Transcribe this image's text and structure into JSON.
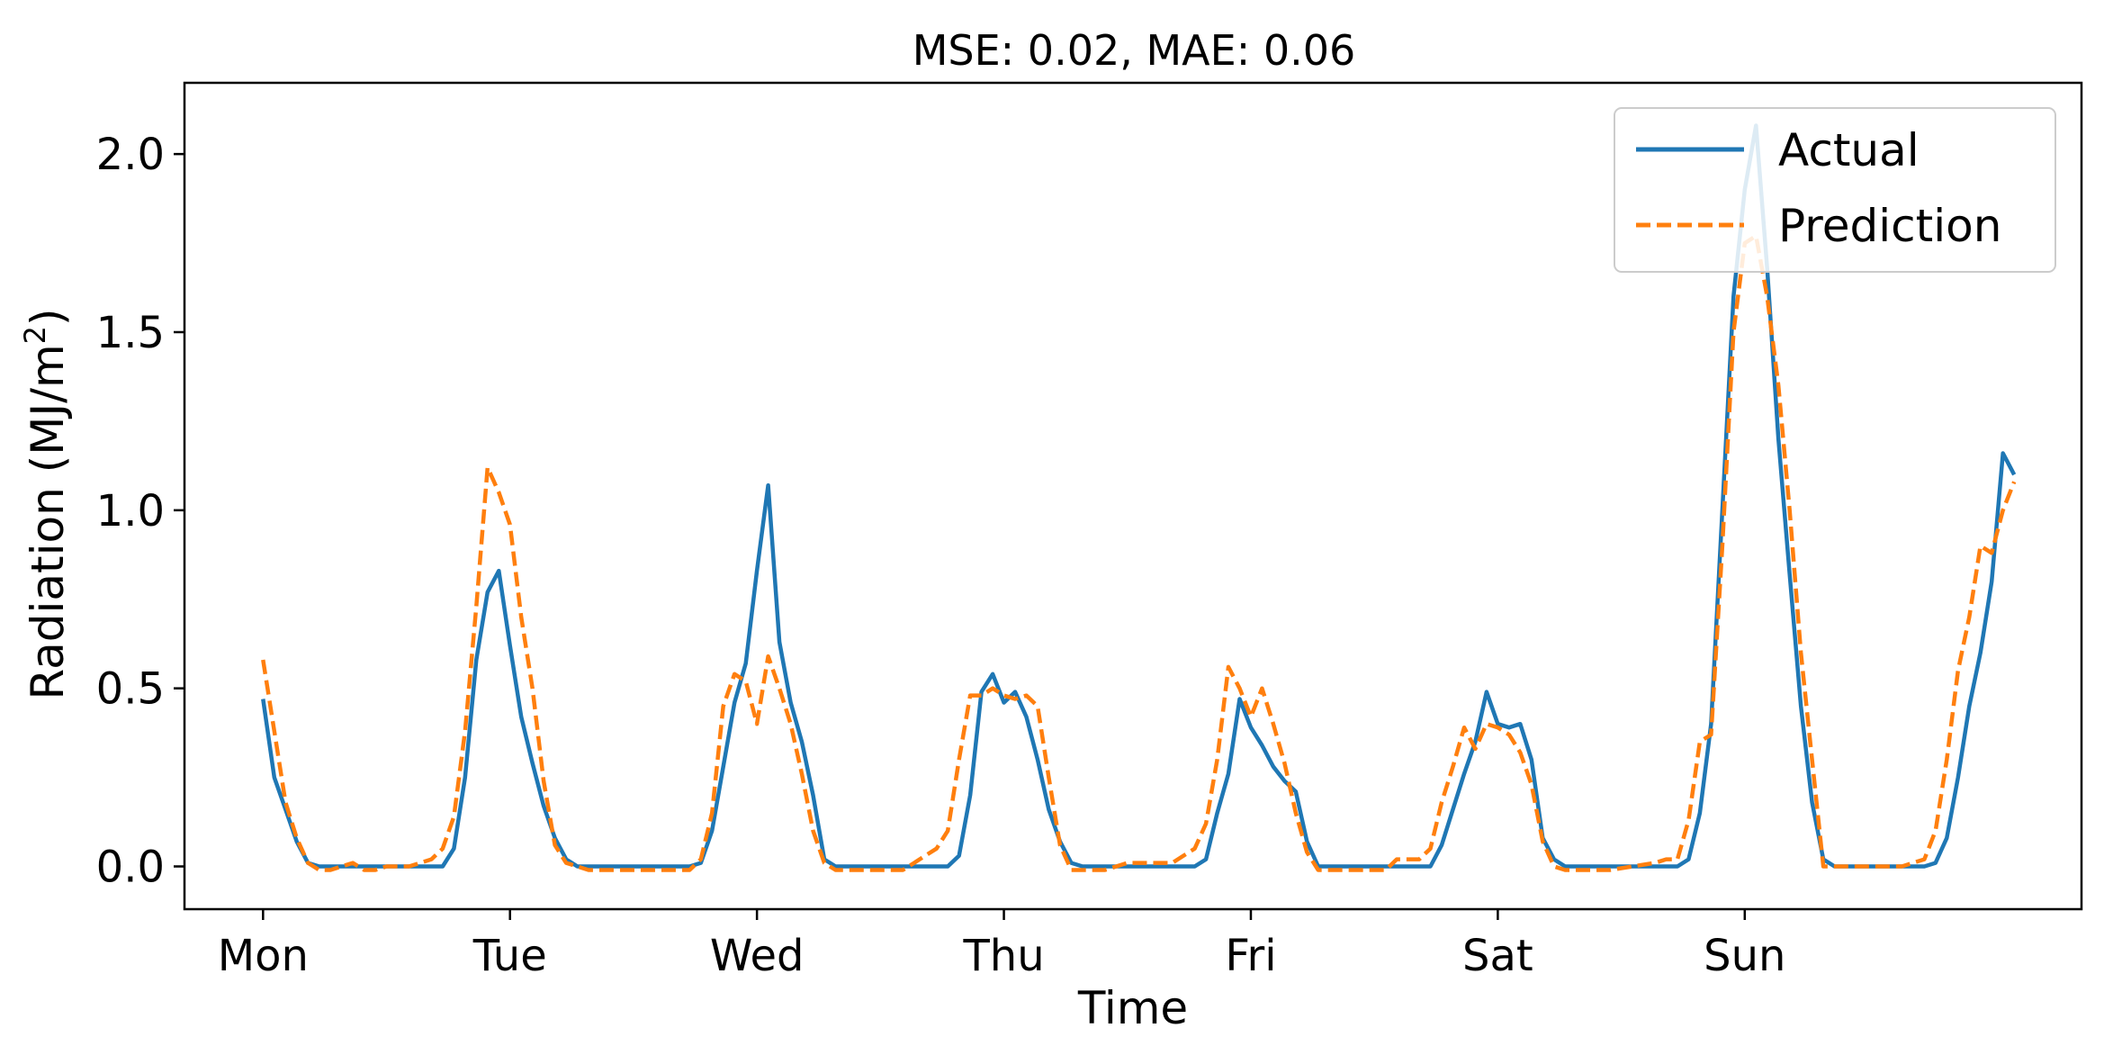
{
  "chart_data": {
    "type": "line",
    "title": "MSE: 0.02, MAE: 0.06",
    "xlabel": "Time",
    "ylabel_main": "Radiation (MJ/m",
    "ylabel_sup": "2",
    "ylabel_close": ")",
    "ylim": [
      -0.12,
      2.2
    ],
    "xlim": [
      -7,
      162
    ],
    "grid": false,
    "legend_position": "top-right",
    "x_ticks": [
      {
        "label": "Mon",
        "value": 0
      },
      {
        "label": "Tue",
        "value": 22
      },
      {
        "label": "Wed",
        "value": 44
      },
      {
        "label": "Thu",
        "value": 66
      },
      {
        "label": "Fri",
        "value": 88
      },
      {
        "label": "Sat",
        "value": 110
      },
      {
        "label": "Sun",
        "value": 132
      }
    ],
    "y_ticks": [
      {
        "label": "0.0",
        "value": 0.0
      },
      {
        "label": "0.5",
        "value": 0.5
      },
      {
        "label": "1.0",
        "value": 1.0
      },
      {
        "label": "1.5",
        "value": 1.5
      },
      {
        "label": "2.0",
        "value": 2.0
      }
    ],
    "series": [
      {
        "name": "Actual",
        "color": "#1f77b4",
        "dash": "solid",
        "points": [
          [
            0,
            0.47
          ],
          [
            1,
            0.25
          ],
          [
            2,
            0.16
          ],
          [
            3,
            0.07
          ],
          [
            4,
            0.01
          ],
          [
            5,
            0.0
          ],
          [
            6,
            0.0
          ],
          [
            8,
            0.0
          ],
          [
            10,
            0.0
          ],
          [
            12,
            0.0
          ],
          [
            14,
            0.0
          ],
          [
            16,
            0.0
          ],
          [
            17,
            0.05
          ],
          [
            18,
            0.25
          ],
          [
            19,
            0.58
          ],
          [
            20,
            0.77
          ],
          [
            21,
            0.83
          ],
          [
            22,
            0.62
          ],
          [
            23,
            0.42
          ],
          [
            24,
            0.29
          ],
          [
            25,
            0.17
          ],
          [
            26,
            0.08
          ],
          [
            27,
            0.02
          ],
          [
            28,
            0.0
          ],
          [
            30,
            0.0
          ],
          [
            32,
            0.0
          ],
          [
            34,
            0.0
          ],
          [
            36,
            0.0
          ],
          [
            38,
            0.0
          ],
          [
            39,
            0.01
          ],
          [
            40,
            0.1
          ],
          [
            41,
            0.28
          ],
          [
            42,
            0.46
          ],
          [
            43,
            0.57
          ],
          [
            44,
            0.83
          ],
          [
            45,
            1.07
          ],
          [
            46,
            0.63
          ],
          [
            47,
            0.46
          ],
          [
            48,
            0.35
          ],
          [
            49,
            0.2
          ],
          [
            50,
            0.02
          ],
          [
            51,
            0.0
          ],
          [
            53,
            0.0
          ],
          [
            55,
            0.0
          ],
          [
            57,
            0.0
          ],
          [
            59,
            0.0
          ],
          [
            61,
            0.0
          ],
          [
            62,
            0.03
          ],
          [
            63,
            0.2
          ],
          [
            64,
            0.49
          ],
          [
            65,
            0.54
          ],
          [
            66,
            0.46
          ],
          [
            67,
            0.49
          ],
          [
            68,
            0.42
          ],
          [
            69,
            0.3
          ],
          [
            70,
            0.16
          ],
          [
            71,
            0.07
          ],
          [
            72,
            0.01
          ],
          [
            73,
            0.0
          ],
          [
            75,
            0.0
          ],
          [
            77,
            0.0
          ],
          [
            79,
            0.0
          ],
          [
            81,
            0.0
          ],
          [
            83,
            0.0
          ],
          [
            84,
            0.02
          ],
          [
            85,
            0.15
          ],
          [
            86,
            0.26
          ],
          [
            87,
            0.47
          ],
          [
            88,
            0.39
          ],
          [
            89,
            0.34
          ],
          [
            90,
            0.28
          ],
          [
            91,
            0.24
          ],
          [
            92,
            0.21
          ],
          [
            93,
            0.07
          ],
          [
            94,
            0.0
          ],
          [
            96,
            0.0
          ],
          [
            98,
            0.0
          ],
          [
            100,
            0.0
          ],
          [
            102,
            0.0
          ],
          [
            104,
            0.0
          ],
          [
            105,
            0.06
          ],
          [
            106,
            0.16
          ],
          [
            107,
            0.26
          ],
          [
            108,
            0.35
          ],
          [
            109,
            0.49
          ],
          [
            110,
            0.4
          ],
          [
            111,
            0.39
          ],
          [
            112,
            0.4
          ],
          [
            113,
            0.3
          ],
          [
            114,
            0.08
          ],
          [
            115,
            0.02
          ],
          [
            116,
            0.0
          ],
          [
            118,
            0.0
          ],
          [
            120,
            0.0
          ],
          [
            122,
            0.0
          ],
          [
            124,
            0.0
          ],
          [
            126,
            0.0
          ],
          [
            127,
            0.02
          ],
          [
            128,
            0.15
          ],
          [
            129,
            0.4
          ],
          [
            130,
            1.0
          ],
          [
            131,
            1.6
          ],
          [
            132,
            1.9
          ],
          [
            133,
            2.08
          ],
          [
            134,
            1.68
          ],
          [
            135,
            1.2
          ],
          [
            136,
            0.82
          ],
          [
            137,
            0.45
          ],
          [
            138,
            0.18
          ],
          [
            139,
            0.02
          ],
          [
            140,
            0.0
          ],
          [
            142,
            0.0
          ],
          [
            144,
            0.0
          ],
          [
            146,
            0.0
          ],
          [
            148,
            0.0
          ],
          [
            149,
            0.01
          ],
          [
            150,
            0.08
          ],
          [
            151,
            0.25
          ],
          [
            152,
            0.45
          ],
          [
            153,
            0.6
          ],
          [
            154,
            0.8
          ],
          [
            155,
            1.16
          ],
          [
            156,
            1.1
          ]
        ]
      },
      {
        "name": "Prediction",
        "color": "#ff7f0e",
        "dash": "dashed",
        "points": [
          [
            0,
            0.58
          ],
          [
            1,
            0.38
          ],
          [
            2,
            0.18
          ],
          [
            3,
            0.08
          ],
          [
            4,
            0.01
          ],
          [
            5,
            -0.01
          ],
          [
            6,
            -0.01
          ],
          [
            7,
            0.0
          ],
          [
            8,
            0.01
          ],
          [
            9,
            -0.01
          ],
          [
            10,
            -0.01
          ],
          [
            11,
            0.0
          ],
          [
            12,
            0.0
          ],
          [
            13,
            0.0
          ],
          [
            14,
            0.01
          ],
          [
            15,
            0.02
          ],
          [
            16,
            0.05
          ],
          [
            17,
            0.14
          ],
          [
            18,
            0.38
          ],
          [
            19,
            0.73
          ],
          [
            20,
            1.12
          ],
          [
            21,
            1.05
          ],
          [
            22,
            0.96
          ],
          [
            23,
            0.7
          ],
          [
            24,
            0.5
          ],
          [
            25,
            0.24
          ],
          [
            26,
            0.06
          ],
          [
            27,
            0.01
          ],
          [
            28,
            0.0
          ],
          [
            29,
            -0.01
          ],
          [
            30,
            -0.01
          ],
          [
            32,
            -0.01
          ],
          [
            34,
            -0.01
          ],
          [
            36,
            -0.01
          ],
          [
            38,
            -0.01
          ],
          [
            39,
            0.02
          ],
          [
            40,
            0.15
          ],
          [
            41,
            0.45
          ],
          [
            42,
            0.54
          ],
          [
            43,
            0.52
          ],
          [
            44,
            0.4
          ],
          [
            45,
            0.59
          ],
          [
            46,
            0.5
          ],
          [
            47,
            0.4
          ],
          [
            48,
            0.26
          ],
          [
            49,
            0.1
          ],
          [
            50,
            0.01
          ],
          [
            51,
            -0.01
          ],
          [
            53,
            -0.01
          ],
          [
            55,
            -0.01
          ],
          [
            57,
            -0.01
          ],
          [
            58,
            0.01
          ],
          [
            59,
            0.03
          ],
          [
            60,
            0.05
          ],
          [
            61,
            0.1
          ],
          [
            62,
            0.3
          ],
          [
            63,
            0.48
          ],
          [
            64,
            0.48
          ],
          [
            65,
            0.5
          ],
          [
            66,
            0.48
          ],
          [
            67,
            0.47
          ],
          [
            68,
            0.48
          ],
          [
            69,
            0.45
          ],
          [
            70,
            0.25
          ],
          [
            71,
            0.06
          ],
          [
            72,
            -0.01
          ],
          [
            73,
            -0.01
          ],
          [
            75,
            -0.01
          ],
          [
            77,
            0.01
          ],
          [
            79,
            0.01
          ],
          [
            81,
            0.01
          ],
          [
            82,
            0.03
          ],
          [
            83,
            0.05
          ],
          [
            84,
            0.12
          ],
          [
            85,
            0.3
          ],
          [
            86,
            0.56
          ],
          [
            87,
            0.5
          ],
          [
            88,
            0.42
          ],
          [
            89,
            0.5
          ],
          [
            90,
            0.4
          ],
          [
            91,
            0.29
          ],
          [
            92,
            0.15
          ],
          [
            93,
            0.04
          ],
          [
            94,
            -0.01
          ],
          [
            96,
            -0.01
          ],
          [
            98,
            -0.01
          ],
          [
            100,
            -0.01
          ],
          [
            101,
            0.02
          ],
          [
            102,
            0.02
          ],
          [
            103,
            0.02
          ],
          [
            104,
            0.05
          ],
          [
            105,
            0.18
          ],
          [
            106,
            0.28
          ],
          [
            107,
            0.39
          ],
          [
            108,
            0.33
          ],
          [
            109,
            0.4
          ],
          [
            110,
            0.39
          ],
          [
            111,
            0.37
          ],
          [
            112,
            0.32
          ],
          [
            113,
            0.23
          ],
          [
            114,
            0.07
          ],
          [
            115,
            0.0
          ],
          [
            116,
            -0.01
          ],
          [
            118,
            -0.01
          ],
          [
            120,
            -0.01
          ],
          [
            122,
            0.0
          ],
          [
            124,
            0.01
          ],
          [
            125,
            0.02
          ],
          [
            126,
            0.02
          ],
          [
            127,
            0.13
          ],
          [
            128,
            0.35
          ],
          [
            129,
            0.37
          ],
          [
            130,
            0.9
          ],
          [
            131,
            1.5
          ],
          [
            132,
            1.75
          ],
          [
            133,
            1.77
          ],
          [
            134,
            1.6
          ],
          [
            135,
            1.35
          ],
          [
            136,
            1.0
          ],
          [
            137,
            0.6
          ],
          [
            138,
            0.3
          ],
          [
            139,
            0.0
          ],
          [
            140,
            0.0
          ],
          [
            142,
            0.0
          ],
          [
            144,
            0.0
          ],
          [
            146,
            0.0
          ],
          [
            148,
            0.02
          ],
          [
            149,
            0.1
          ],
          [
            150,
            0.3
          ],
          [
            151,
            0.55
          ],
          [
            152,
            0.7
          ],
          [
            153,
            0.9
          ],
          [
            154,
            0.88
          ],
          [
            155,
            1.0
          ],
          [
            156,
            1.08
          ]
        ]
      }
    ]
  }
}
